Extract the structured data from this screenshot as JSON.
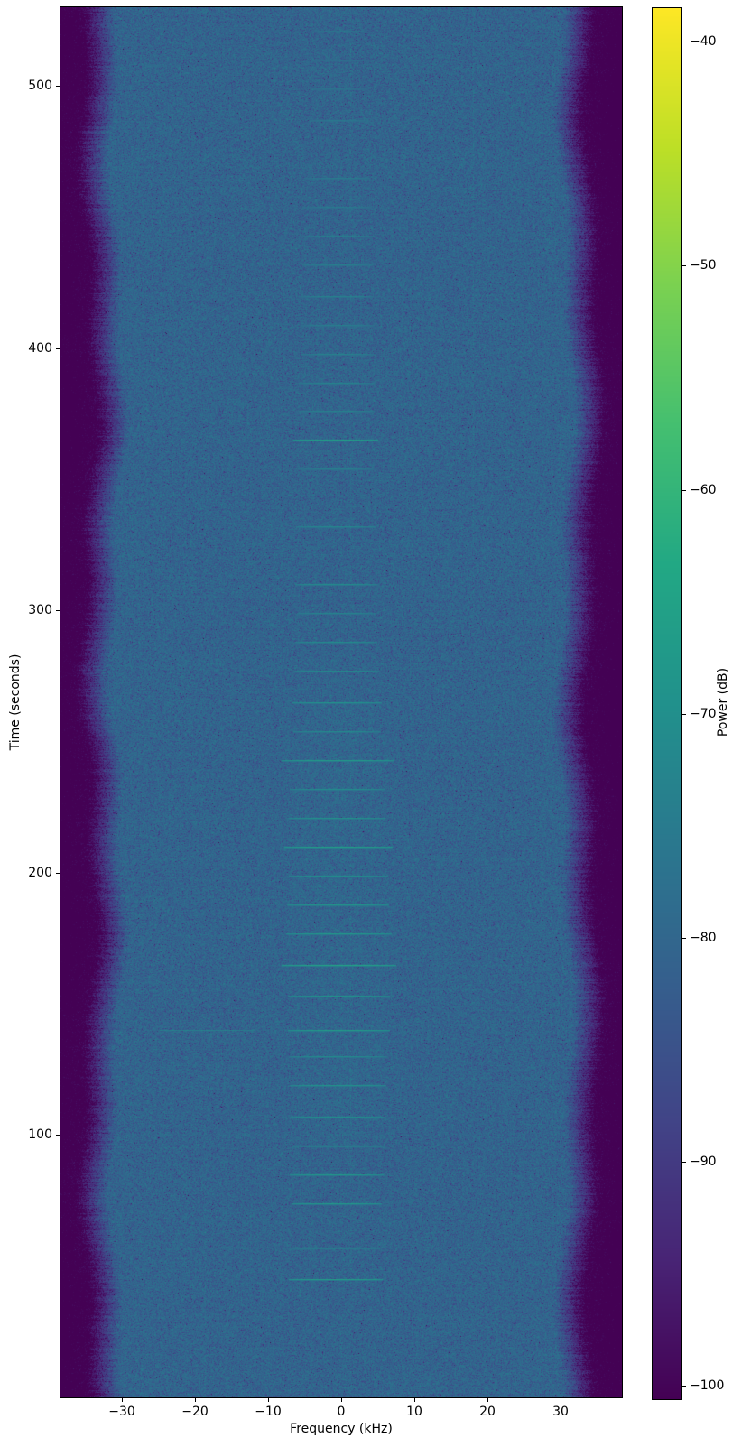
{
  "chart_data": {
    "type": "heatmap",
    "subtype": "spectrogram",
    "title": "",
    "xlabel": "Frequency (kHz)",
    "ylabel": "Time (seconds)",
    "x_range_khz": [
      -38.4,
      38.4
    ],
    "y_range_seconds": [
      0,
      530
    ],
    "x_ticks": [
      {
        "value": -30,
        "label": "−30"
      },
      {
        "value": -20,
        "label": "−20"
      },
      {
        "value": -10,
        "label": "−10"
      },
      {
        "value": 0,
        "label": "0"
      },
      {
        "value": 10,
        "label": "10"
      },
      {
        "value": 20,
        "label": "20"
      },
      {
        "value": 30,
        "label": "30"
      }
    ],
    "y_ticks": [
      {
        "value": 100,
        "label": "100"
      },
      {
        "value": 200,
        "label": "200"
      },
      {
        "value": 300,
        "label": "300"
      },
      {
        "value": 400,
        "label": "400"
      },
      {
        "value": 500,
        "label": "500"
      }
    ],
    "colorbar": {
      "label": "Power (dB)",
      "range_db": [
        -100.6,
        -38.5
      ],
      "ticks": [
        {
          "value": -40,
          "label": "−40"
        },
        {
          "value": -50,
          "label": "−50"
        },
        {
          "value": -60,
          "label": "−60"
        },
        {
          "value": -70,
          "label": "−70"
        },
        {
          "value": -80,
          "label": "−80"
        },
        {
          "value": -90,
          "label": "−90"
        },
        {
          "value": -100,
          "label": "−100"
        }
      ]
    },
    "colormap": {
      "name": "viridis",
      "stops": [
        "#440154",
        "#482475",
        "#414487",
        "#355f8d",
        "#2a788e",
        "#21918c",
        "#22a884",
        "#44bf70",
        "#7ad151",
        "#bddf26",
        "#fde725"
      ]
    },
    "noise_floor_db": -79.8,
    "noise_scale": 0.85,
    "passband": {
      "flat_until_khz": 30.5,
      "floor_at_khz": 34.8,
      "attenuation_db": 21.5
    },
    "center_bump": {
      "abs_f_khz": 8.5,
      "t0": 95,
      "t1": 265,
      "boost_db": 0.6
    },
    "bursts": [
      {
        "t": 521,
        "c": -0.2,
        "hw": 3.8,
        "db": -75.5
      },
      {
        "t": 510,
        "c": -0.2,
        "hw": 4.0,
        "db": -75.0
      },
      {
        "t": 499,
        "c": -0.3,
        "hw": 4.0,
        "db": -75.5
      },
      {
        "t": 487,
        "c": -0.3,
        "hw": 4.2,
        "db": -74.5
      },
      {
        "t": 465,
        "c": -0.4,
        "hw": 4.5,
        "db": -73.5
      },
      {
        "t": 454,
        "c": -0.4,
        "hw": 4.6,
        "db": -74.0
      },
      {
        "t": 443,
        "c": -0.4,
        "hw": 4.8,
        "db": -73.0
      },
      {
        "t": 432,
        "c": -0.5,
        "hw": 4.8,
        "db": -72.5
      },
      {
        "t": 420,
        "c": -0.5,
        "hw": 5.0,
        "db": -72.0
      },
      {
        "t": 409,
        "c": -0.5,
        "hw": 5.0,
        "db": -73.0
      },
      {
        "t": 398,
        "c": -0.6,
        "hw": 5.0,
        "db": -72.0
      },
      {
        "t": 387,
        "c": -0.6,
        "hw": 5.2,
        "db": -71.5
      },
      {
        "t": 376,
        "c": -0.6,
        "hw": 5.2,
        "db": -72.0
      },
      {
        "t": 365,
        "c": -0.7,
        "hw": 5.8,
        "db": -64.0
      },
      {
        "t": 354,
        "c": -0.7,
        "hw": 5.2,
        "db": -72.5
      },
      {
        "t": 332,
        "c": -0.7,
        "hw": 5.5,
        "db": -70.5
      },
      {
        "t": 310,
        "c": -0.7,
        "hw": 5.6,
        "db": -69.0
      },
      {
        "t": 299,
        "c": -0.7,
        "hw": 5.4,
        "db": -71.0
      },
      {
        "t": 288,
        "c": -0.7,
        "hw": 5.6,
        "db": -69.5
      },
      {
        "t": 277,
        "c": -0.6,
        "hw": 5.8,
        "db": -70.0
      },
      {
        "t": 265,
        "c": -0.6,
        "hw": 6.2,
        "db": -67.5
      },
      {
        "t": 254,
        "c": -0.6,
        "hw": 6.0,
        "db": -70.0
      },
      {
        "t": 243,
        "c": -0.5,
        "hw": 7.6,
        "db": -65.0
      },
      {
        "t": 232,
        "c": -0.5,
        "hw": 6.5,
        "db": -69.0
      },
      {
        "t": 221,
        "c": -0.5,
        "hw": 6.6,
        "db": -67.5
      },
      {
        "t": 210,
        "c": -0.4,
        "hw": 7.4,
        "db": -64.0
      },
      {
        "t": 199,
        "c": -0.4,
        "hw": 6.8,
        "db": -68.5
      },
      {
        "t": 188,
        "c": -0.4,
        "hw": 7.0,
        "db": -66.5
      },
      {
        "t": 177,
        "c": -0.3,
        "hw": 7.2,
        "db": -66.0
      },
      {
        "t": 165,
        "c": -0.3,
        "hw": 7.8,
        "db": -63.0
      },
      {
        "t": 153,
        "c": -0.3,
        "hw": 7.0,
        "db": -67.5
      },
      {
        "t": 140,
        "c": -0.3,
        "hw": 7.0,
        "db": -65.0
      },
      {
        "t": 130,
        "c": -0.4,
        "hw": 6.6,
        "db": -69.5
      },
      {
        "t": 119,
        "c": -0.4,
        "hw": 6.6,
        "db": -67.5
      },
      {
        "t": 107,
        "c": -0.5,
        "hw": 6.4,
        "db": -68.5
      },
      {
        "t": 96,
        "c": -0.5,
        "hw": 6.2,
        "db": -67.5
      },
      {
        "t": 85,
        "c": -0.6,
        "hw": 6.4,
        "db": -66.5
      },
      {
        "t": 74,
        "c": -0.6,
        "hw": 6.2,
        "db": -66.0
      },
      {
        "t": 57,
        "c": -0.7,
        "hw": 6.0,
        "db": -68.5
      },
      {
        "t": 45,
        "c": -0.7,
        "hw": 6.4,
        "db": -64.5
      }
    ],
    "extra_segments": [
      {
        "t": 140,
        "f0": -24.8,
        "f1": -11.8,
        "db": -71.5
      }
    ],
    "carriers": [
      {
        "f": 1.2,
        "t0": 0,
        "t1": 530,
        "boost_db": 1.6
      },
      {
        "f": 18.0,
        "t0": 290,
        "t1": 527,
        "boost_db": 2.0
      },
      {
        "f": -18.7,
        "t0": 0,
        "t1": 70,
        "boost_db": 1.8
      }
    ],
    "seed": 42
  }
}
